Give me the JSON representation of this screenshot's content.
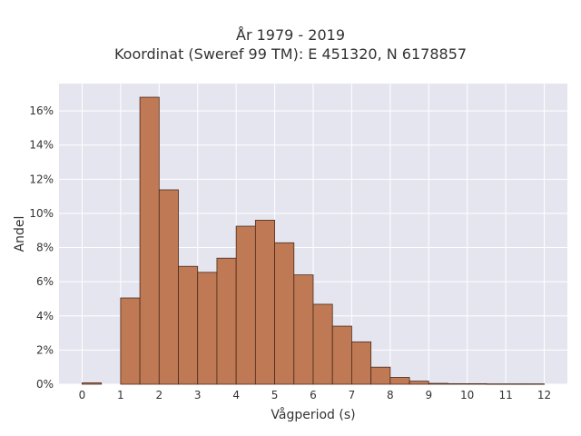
{
  "chart_data": {
    "type": "bar",
    "title": "År 1979 - 2019",
    "subtitle": "Koordinat (Sweref 99 TM): E 451320, N 6178857",
    "xlabel": "Vågperiod (s)",
    "ylabel": "Andel",
    "xlim": [
      -0.6,
      12.6
    ],
    "ylim": [
      0,
      0.176
    ],
    "x_ticks": [
      0,
      1,
      2,
      3,
      4,
      5,
      6,
      7,
      8,
      9,
      10,
      11,
      12
    ],
    "x_tick_labels": [
      "0",
      "1",
      "2",
      "3",
      "4",
      "5",
      "6",
      "7",
      "8",
      "9",
      "10",
      "11",
      "12"
    ],
    "y_ticks": [
      0,
      0.02,
      0.04,
      0.06,
      0.08,
      0.1,
      0.12,
      0.14,
      0.16
    ],
    "y_tick_labels": [
      "0%",
      "2%",
      "4%",
      "6%",
      "8%",
      "10%",
      "12%",
      "14%",
      "16%"
    ],
    "bin_width": 0.5,
    "bins": [
      {
        "x0": 0.0,
        "x1": 0.5,
        "value": 0.0008
      },
      {
        "x0": 1.0,
        "x1": 1.5,
        "value": 0.0505
      },
      {
        "x0": 1.5,
        "x1": 2.0,
        "value": 0.168
      },
      {
        "x0": 2.0,
        "x1": 2.5,
        "value": 0.1138
      },
      {
        "x0": 2.5,
        "x1": 3.0,
        "value": 0.069
      },
      {
        "x0": 3.0,
        "x1": 3.5,
        "value": 0.0655
      },
      {
        "x0": 3.5,
        "x1": 4.0,
        "value": 0.0738
      },
      {
        "x0": 4.0,
        "x1": 4.5,
        "value": 0.0925
      },
      {
        "x0": 4.5,
        "x1": 5.0,
        "value": 0.096
      },
      {
        "x0": 5.0,
        "x1": 5.5,
        "value": 0.0828
      },
      {
        "x0": 5.5,
        "x1": 6.0,
        "value": 0.064
      },
      {
        "x0": 6.0,
        "x1": 6.5,
        "value": 0.0468
      },
      {
        "x0": 6.5,
        "x1": 7.0,
        "value": 0.034
      },
      {
        "x0": 7.0,
        "x1": 7.5,
        "value": 0.0248
      },
      {
        "x0": 7.5,
        "x1": 8.0,
        "value": 0.01
      },
      {
        "x0": 8.0,
        "x1": 8.5,
        "value": 0.004
      },
      {
        "x0": 8.5,
        "x1": 9.0,
        "value": 0.0018
      },
      {
        "x0": 9.0,
        "x1": 9.5,
        "value": 0.0005
      },
      {
        "x0": 9.5,
        "x1": 10.0,
        "value": 0.0003
      },
      {
        "x0": 10.0,
        "x1": 10.5,
        "value": 0.0003
      },
      {
        "x0": 10.5,
        "x1": 11.0,
        "value": 0.0002
      },
      {
        "x0": 11.0,
        "x1": 11.5,
        "value": 0.0002
      },
      {
        "x0": 11.5,
        "x1": 12.0,
        "value": 0.0002
      }
    ],
    "grid": true,
    "legend": "none",
    "colors": {
      "bar_fill": "#bf7a55",
      "bar_stroke": "#4a2a1a",
      "plot_background": "#e5e5f0",
      "grid": "#ffffff"
    }
  }
}
